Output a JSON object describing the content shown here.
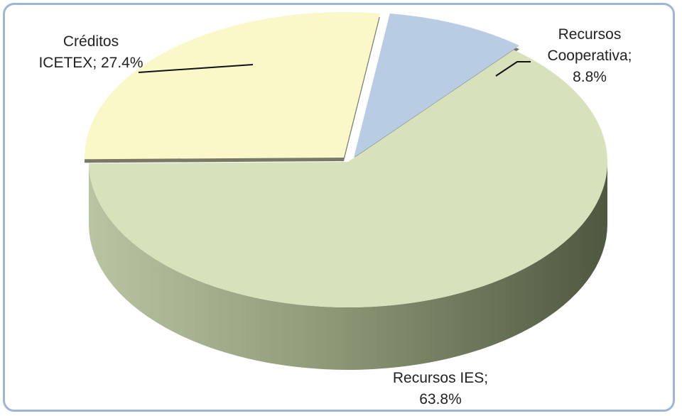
{
  "colors": {
    "border": "#9db6d6",
    "Recursos IES": "#d7e2bd",
    "Créditos ICETEX": "#faf8c8",
    "Recursos Cooperativa": "#b8cce4"
  },
  "labels": {
    "creditos_line1": "Créditos",
    "creditos_line2": "ICETEX; 27.4%",
    "coop_line1": "Recursos",
    "coop_line2": "Cooperativa;",
    "coop_line3": "8.8%",
    "ies_line1": "Recursos IES;",
    "ies_line2": "63.8%"
  },
  "chart_data": {
    "type": "pie",
    "title": "",
    "slices": [
      {
        "name": "Recursos IES",
        "value": 63.8
      },
      {
        "name": "Créditos ICETEX",
        "value": 27.4
      },
      {
        "name": "Recursos Cooperativa",
        "value": 8.8
      }
    ],
    "unit": "%",
    "legend": "none"
  }
}
